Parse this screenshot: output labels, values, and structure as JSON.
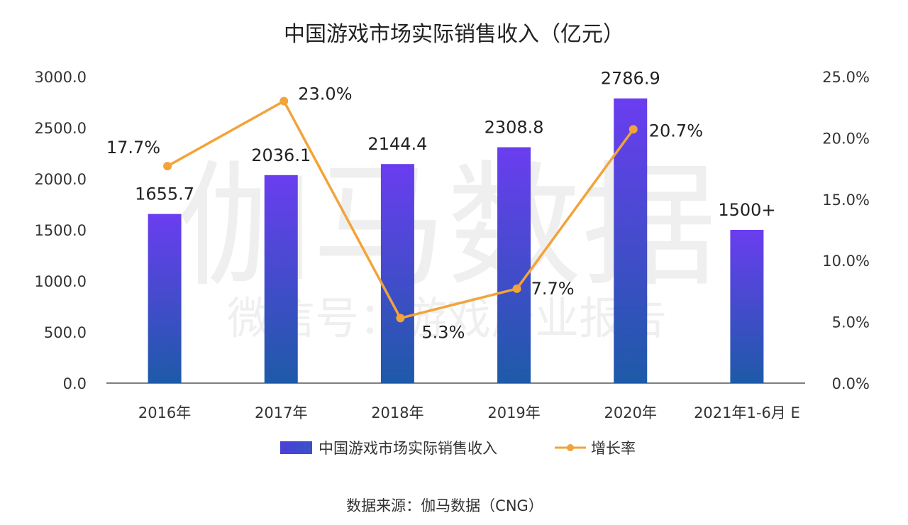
{
  "chart_data": {
    "type": "bar",
    "title": "中国游戏市场实际销售收入（亿元）",
    "categories": [
      "2016年",
      "2017年",
      "2018年",
      "2019年",
      "2020年",
      "2021年1-6月 E"
    ],
    "series": [
      {
        "name": "中国游戏市场实际销售收入",
        "type": "bar",
        "axis": "left",
        "values": [
          1655.7,
          2036.1,
          2144.4,
          2308.8,
          2786.9,
          1500
        ],
        "labels": [
          "1655.7",
          "2036.1",
          "2144.4",
          "2308.8",
          "2786.9",
          "1500+"
        ],
        "color_top": "#6a3df0",
        "color_bottom": "#1e5aa8"
      },
      {
        "name": "增长率",
        "type": "line",
        "axis": "right",
        "values": [
          17.7,
          23.0,
          5.3,
          7.7,
          20.7,
          null
        ],
        "labels": [
          "17.7%",
          "23.0%",
          "5.3%",
          "7.7%",
          "20.7%",
          null
        ],
        "color": "#f2a33a"
      }
    ],
    "y_left": {
      "ticks": [
        "0.0",
        "500.0",
        "1000.0",
        "1500.0",
        "2000.0",
        "2500.0",
        "3000.0"
      ],
      "ylim": [
        0,
        3000
      ]
    },
    "y_right": {
      "ticks": [
        "0.0%",
        "5.0%",
        "10.0%",
        "15.0%",
        "20.0%",
        "25.0%"
      ],
      "ylim": [
        0,
        25
      ]
    },
    "grid": false,
    "legend_position": "bottom"
  },
  "source": "数据来源：伽马数据（CNG）",
  "watermark": {
    "main": "伽马数据",
    "sub": "微信号：游戏产业报告"
  }
}
